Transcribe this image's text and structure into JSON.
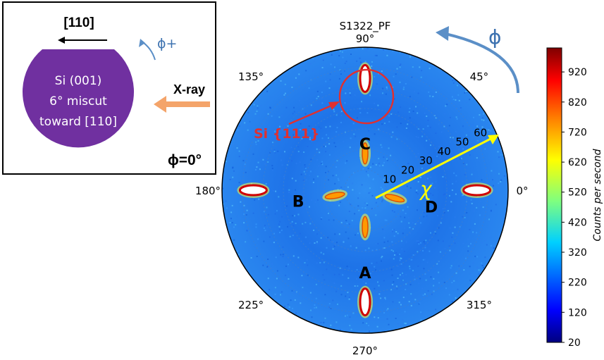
{
  "chart_data": {
    "type": "polar-pole-figure",
    "title": "S1322_PF",
    "angular_ticks": [
      {
        "deg": 90,
        "label": "90°"
      },
      {
        "deg": 45,
        "label": "45°"
      },
      {
        "deg": 0,
        "label": "0°"
      },
      {
        "deg": 315,
        "label": "315°"
      },
      {
        "deg": 270,
        "label": "270°"
      },
      {
        "deg": 225,
        "label": "225°"
      },
      {
        "deg": 180,
        "label": "180°"
      },
      {
        "deg": 135,
        "label": "135°"
      }
    ],
    "chi_ticks": [
      10,
      20,
      30,
      40,
      50,
      60
    ],
    "chi_max": 70,
    "chi_symbol": "χ",
    "phi_symbol": "ϕ",
    "peaks": [
      {
        "label": "Si (111)",
        "phi": 90,
        "chi": 54.7,
        "family": "Si {111}",
        "circled": true
      },
      {
        "label": "",
        "phi": 0,
        "chi": 54.7,
        "family": "Si {111}"
      },
      {
        "label": "",
        "phi": 180,
        "chi": 54.7,
        "family": "Si {111}"
      },
      {
        "label": "",
        "phi": 270,
        "chi": 54.7,
        "family": "Si {111}"
      },
      {
        "label": "C",
        "phi": 90,
        "chi": 18
      },
      {
        "label": "D",
        "phi": 345,
        "chi": 15
      },
      {
        "label": "A",
        "phi": 270,
        "chi": 18
      },
      {
        "label": "B",
        "phi": 190,
        "chi": 15
      }
    ],
    "peak_annotation": "Si {111}",
    "colorbar": {
      "label": "Counts per second",
      "min": 20,
      "max": 1000,
      "ticks": [
        920,
        820,
        720,
        620,
        520,
        420,
        320,
        220,
        120,
        20
      ],
      "colormap": [
        "#00007f",
        "#0000ff",
        "#007fff",
        "#00ffff",
        "#7fff7f",
        "#ffff00",
        "#ff7f00",
        "#ff0000",
        "#7f0000"
      ]
    }
  },
  "inset": {
    "direction_label": "[110]",
    "phi_plus_label": "ϕ+",
    "xray_label": "X-ray",
    "wafer_lines": [
      "Si (001)",
      "6° miscut",
      "toward [110]"
    ],
    "phi_zero_label": "ϕ=0°",
    "wafer_color": "#7030a0",
    "xray_arrow_color": "#f4a46a",
    "rotation_arrow_color": "#5b8fc7"
  }
}
